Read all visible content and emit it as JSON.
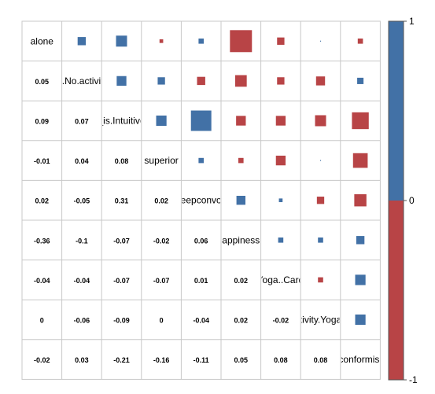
{
  "chart_data": {
    "type": "heatmap",
    "variables": [
      "alone",
      "ty.No.activity",
      "_is.Intuitive",
      "superior",
      "eepconvo",
      "appiness",
      "y.Yoga..Cardio",
      "tivity.Yoga",
      "conformist"
    ],
    "matrix": [
      [
        1.0,
        0.05,
        0.09,
        -0.01,
        0.02,
        -0.36,
        -0.04,
        0.0,
        -0.02
      ],
      [
        0.05,
        1.0,
        0.07,
        0.04,
        -0.05,
        -0.1,
        -0.04,
        -0.06,
        0.03
      ],
      [
        0.09,
        0.07,
        1.0,
        0.08,
        0.31,
        -0.07,
        -0.07,
        -0.09,
        -0.21
      ],
      [
        -0.01,
        0.04,
        0.08,
        1.0,
        0.02,
        -0.02,
        -0.07,
        0.0,
        -0.16
      ],
      [
        0.02,
        -0.05,
        0.31,
        0.02,
        1.0,
        0.06,
        0.01,
        -0.04,
        -0.11
      ],
      [
        -0.36,
        -0.1,
        -0.07,
        -0.02,
        0.06,
        1.0,
        0.02,
        0.02,
        0.05
      ],
      [
        -0.04,
        -0.04,
        -0.07,
        -0.07,
        0.01,
        0.02,
        1.0,
        -0.02,
        0.08
      ],
      [
        0.0,
        -0.06,
        -0.09,
        0.0,
        -0.04,
        0.02,
        -0.02,
        1.0,
        0.08
      ],
      [
        -0.02,
        0.03,
        -0.21,
        -0.16,
        -0.11,
        0.05,
        0.08,
        0.08,
        1.0
      ]
    ],
    "lower_labels": [
      [
        "0.05"
      ],
      [
        "0.09",
        "0.07"
      ],
      [
        "-0.01",
        "0.04",
        "0.08"
      ],
      [
        "0.02",
        "-0.05",
        "0.31",
        "0.02"
      ],
      [
        "-0.36",
        "-0.1",
        "-0.07",
        "-0.02",
        "0.06"
      ],
      [
        "-0.04",
        "-0.04",
        "-0.07",
        "-0.07",
        "0.01",
        "0.02"
      ],
      [
        "0",
        "-0.06",
        "-0.09",
        "0",
        "-0.04",
        "0.02",
        "-0.02"
      ],
      [
        "-0.02",
        "0.03",
        "-0.21",
        "-0.16",
        "-0.11",
        "0.05",
        "0.08",
        "0.08"
      ]
    ],
    "upper_squares": "size and color by value",
    "colorbar": {
      "ticks": [
        "1",
        "0",
        "-1"
      ],
      "range": [
        -1,
        1
      ]
    },
    "colors": {
      "positive": "#4271a6",
      "negative": "#b84446",
      "grid": "#c8c8c8"
    }
  }
}
